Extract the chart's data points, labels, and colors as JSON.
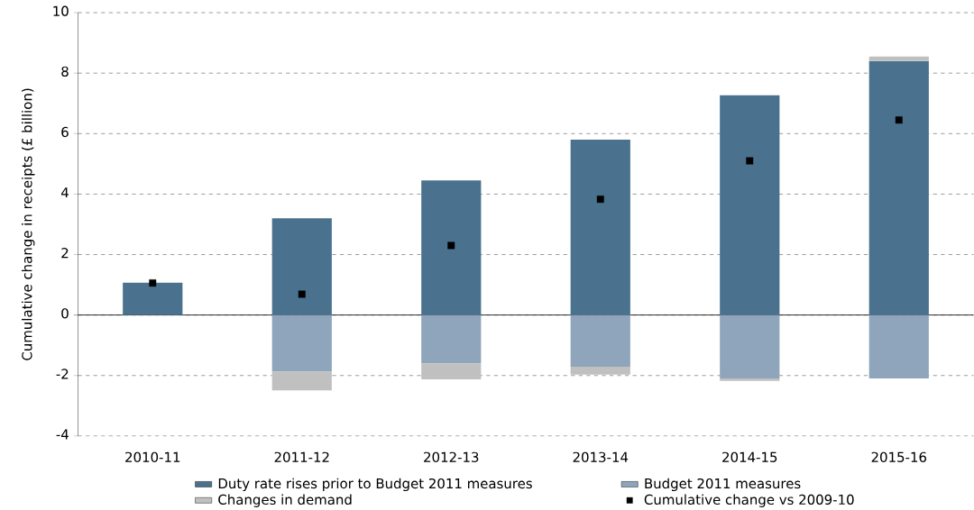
{
  "chart_data": {
    "type": "bar",
    "stacked": true,
    "ylabel": "Cumulative change in receipts (£ billion)",
    "categories": [
      "2010-11",
      "2011-12",
      "2012-13",
      "2013-14",
      "2014-15",
      "2015-16"
    ],
    "series": [
      {
        "name": "Duty rate rises prior to Budget 2011 measures",
        "color": "#4a718d",
        "values": [
          1.07,
          3.2,
          4.45,
          5.8,
          7.27,
          8.4
        ]
      },
      {
        "name": "Budget 2011 measures",
        "color": "#8fa5bb",
        "values": [
          0,
          -1.87,
          -1.6,
          -1.71,
          -2.1,
          -2.1
        ]
      },
      {
        "name": "Changes in demand",
        "color": "#c0c0c0",
        "values": [
          0,
          -0.62,
          -0.53,
          -0.26,
          -0.08,
          0.15
        ]
      },
      {
        "name": "Cumulative change vs 2009-10",
        "type": "scatter",
        "marker": "square",
        "color": "#000000",
        "values": [
          1.06,
          0.69,
          2.3,
          3.83,
          5.1,
          6.45
        ]
      }
    ],
    "ylim": [
      -4,
      10
    ],
    "yticks": [
      -4,
      -2,
      0,
      2,
      4,
      6,
      8,
      10
    ],
    "grid": "y",
    "legend": "bottom"
  }
}
